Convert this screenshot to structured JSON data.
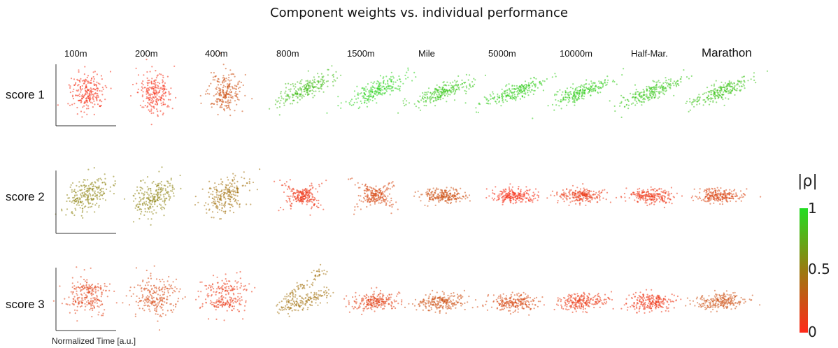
{
  "title": "Component weights vs. individual performance",
  "chart_data": {
    "type": "scatter",
    "title": "Component weights vs. individual performance",
    "xlabel": "Normalized Time [a.u.]",
    "columns": [
      "100m",
      "200m",
      "400m",
      "800m",
      "1500m",
      "Mile",
      "5000m",
      "10000m",
      "Half-Mar.",
      "Marathon"
    ],
    "rows": [
      "score 1",
      "score 2",
      "score 3"
    ],
    "colorbar": {
      "label": "|ρ|",
      "ticks": [
        "1",
        "0.5",
        "0"
      ],
      "range": [
        0,
        1
      ],
      "color_low": "#ff2a1a",
      "color_mid": "#9a7a10",
      "color_high": "#22dd22"
    },
    "abs_rho": [
      [
        0.05,
        0.05,
        0.25,
        0.85,
        0.95,
        0.9,
        0.92,
        0.92,
        0.9,
        0.88
      ],
      [
        0.55,
        0.55,
        0.45,
        0.08,
        0.2,
        0.25,
        0.05,
        0.1,
        0.08,
        0.18
      ],
      [
        0.15,
        0.2,
        0.1,
        0.45,
        0.15,
        0.25,
        0.2,
        0.1,
        0.08,
        0.25
      ]
    ]
  }
}
